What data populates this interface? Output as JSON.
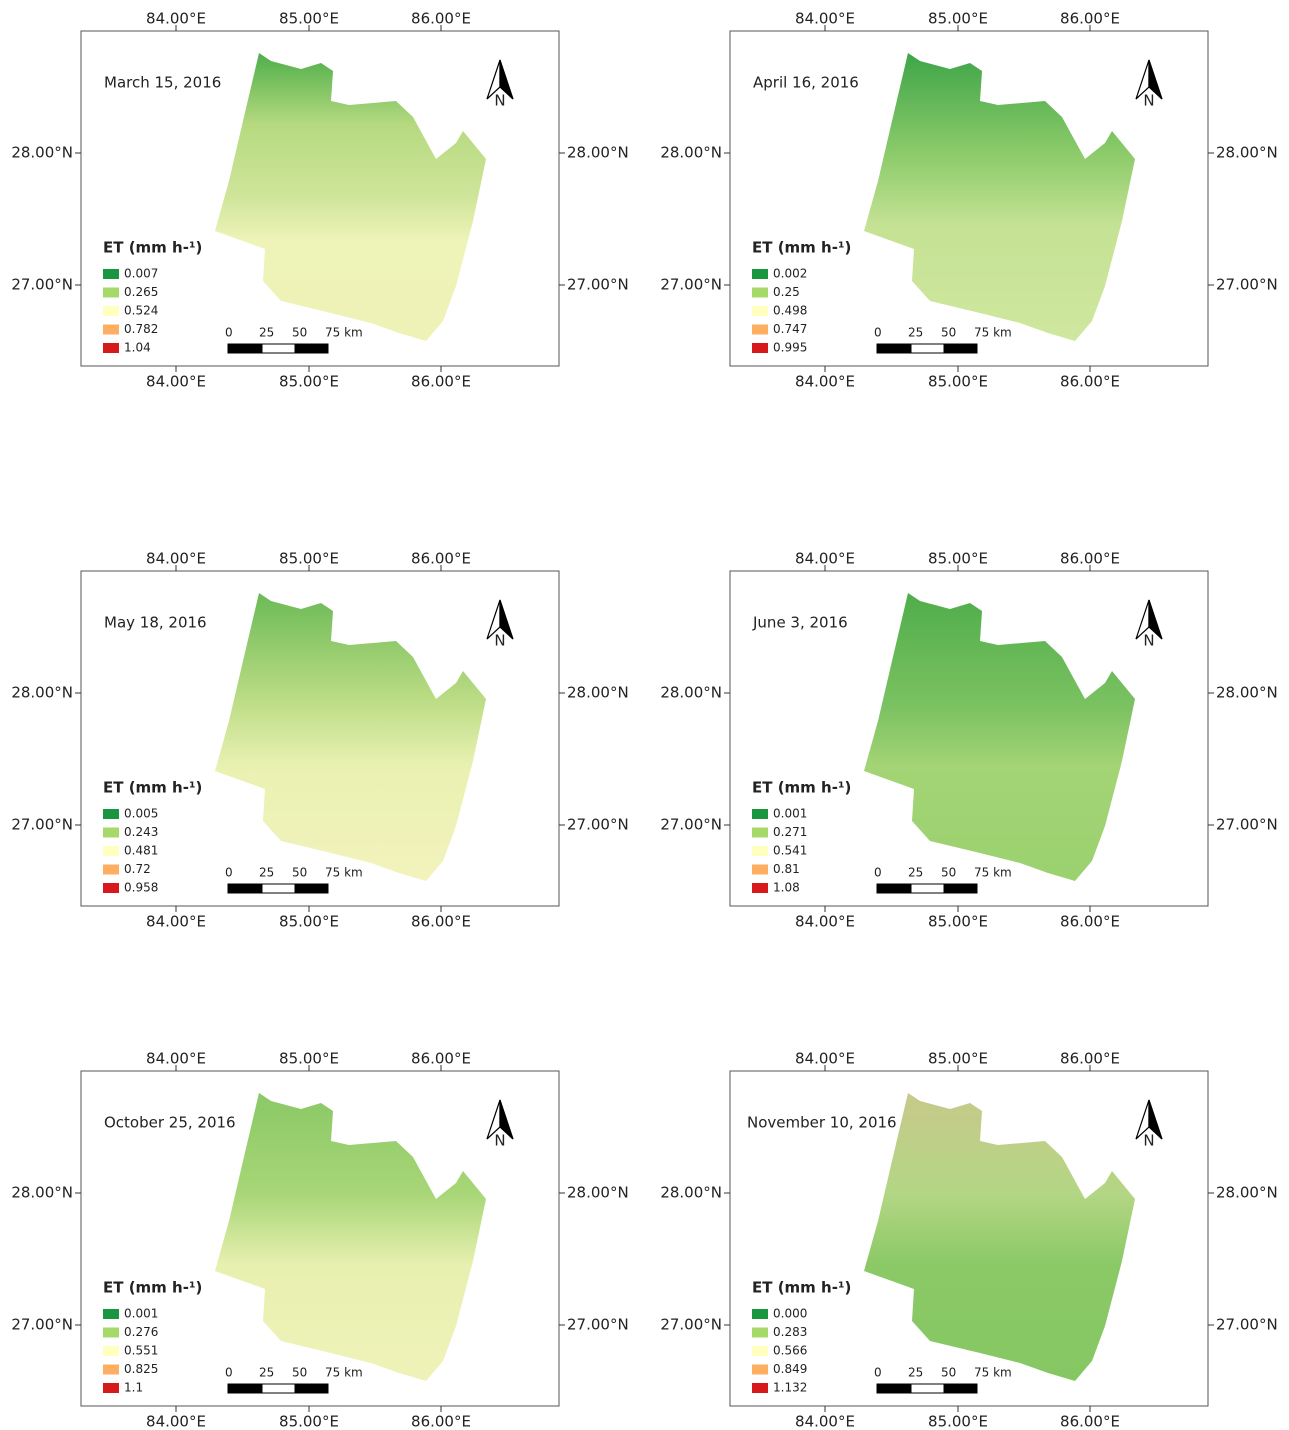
{
  "lon_labels": [
    "84.00°E",
    "85.00°E",
    "86.00°E"
  ],
  "lat_labels": [
    "28.00°N",
    "27.00°N"
  ],
  "north_label": "N",
  "legend_title": "ET (mm h-¹)",
  "scale_labels": [
    "0",
    "25",
    "50",
    "75 km"
  ],
  "legend_colors": [
    "#1a9641",
    "#a6d96a",
    "#ffffc0",
    "#fdae61",
    "#d7191c"
  ],
  "panels": [
    {
      "date": "March 15, 2016",
      "legend": [
        "0.007",
        "0.265",
        "0.524",
        "0.782",
        "1.04"
      ]
    },
    {
      "date": "April 16, 2016",
      "legend": [
        "0.002",
        "0.25",
        "0.498",
        "0.747",
        "0.995"
      ]
    },
    {
      "date": "May 18, 2016",
      "legend": [
        "0.005",
        "0.243",
        "0.481",
        "0.72",
        "0.958"
      ]
    },
    {
      "date": "June 3, 2016",
      "legend": [
        "0.001",
        "0.271",
        "0.541",
        "0.81",
        "1.08"
      ]
    },
    {
      "date": "October 25, 2016",
      "legend": [
        "0.001",
        "0.276",
        "0.551",
        "0.825",
        "1.1"
      ]
    },
    {
      "date": "November 10, 2016",
      "legend": [
        "0.000",
        "0.283",
        "0.566",
        "0.849",
        "1.132"
      ]
    }
  ]
}
